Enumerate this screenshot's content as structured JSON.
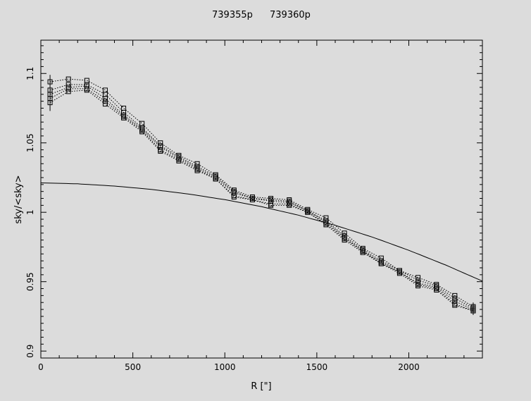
{
  "header": {
    "label_a": "739355p",
    "label_b": "739360p"
  },
  "chart_data": {
    "type": "line",
    "xlabel": "R  [\"]",
    "ylabel": "sky/<sky>",
    "xlim": [
      0,
      2400
    ],
    "ylim": [
      0.895,
      1.124
    ],
    "x_ticks": [
      0,
      500,
      1000,
      1500,
      2000
    ],
    "y_ticks": [
      0.9,
      0.95,
      1,
      1.05,
      1.1
    ],
    "y_tick_labels": [
      "0.9",
      "0.95",
      "1",
      "1.05",
      "1.1"
    ],
    "grid": false,
    "x": [
      50,
      150,
      250,
      350,
      450,
      550,
      650,
      750,
      850,
      950,
      1050,
      1150,
      1250,
      1350,
      1450,
      1550,
      1650,
      1750,
      1850,
      1950,
      2050,
      2150,
      2250,
      2350
    ],
    "series": [
      {
        "style": "dotted-squares",
        "values": [
          1.094,
          1.096,
          1.095,
          1.088,
          1.075,
          1.064,
          1.05,
          1.041,
          1.035,
          1.027,
          1.016,
          1.011,
          1.01,
          1.009,
          1.002,
          0.996,
          0.985,
          0.974,
          0.967,
          0.958,
          0.953,
          0.948,
          0.94,
          0.932
        ]
      },
      {
        "style": "dotted-squares",
        "values": [
          1.088,
          1.092,
          1.092,
          1.085,
          1.072,
          1.061,
          1.048,
          1.04,
          1.033,
          1.026,
          1.015,
          1.01,
          1.009,
          1.008,
          1.001,
          0.994,
          0.983,
          0.973,
          0.965,
          0.958,
          0.951,
          0.947,
          0.938,
          0.931
        ]
      },
      {
        "style": "dotted-squares",
        "values": [
          1.085,
          1.09,
          1.091,
          1.082,
          1.07,
          1.06,
          1.047,
          1.039,
          1.032,
          1.025,
          1.014,
          1.01,
          1.008,
          1.007,
          1.001,
          0.993,
          0.982,
          0.972,
          0.964,
          0.957,
          0.949,
          0.946,
          0.936,
          0.93
        ]
      },
      {
        "style": "dotted-squares",
        "values": [
          1.082,
          1.089,
          1.089,
          1.08,
          1.069,
          1.059,
          1.045,
          1.038,
          1.031,
          1.024,
          1.012,
          1.009,
          1.006,
          1.006,
          1.0,
          0.992,
          0.981,
          0.972,
          0.963,
          0.957,
          0.948,
          0.945,
          0.934,
          0.929
        ]
      },
      {
        "style": "dotted-squares",
        "values": [
          1.079,
          1.087,
          1.088,
          1.078,
          1.068,
          1.058,
          1.044,
          1.037,
          1.03,
          1.024,
          1.011,
          1.009,
          1.005,
          1.005,
          1.0,
          0.991,
          0.98,
          0.971,
          0.963,
          0.956,
          0.947,
          0.944,
          0.933,
          0.929
        ]
      }
    ],
    "model_curve": {
      "style": "solid",
      "x": [
        0,
        200,
        400,
        600,
        800,
        1000,
        1200,
        1400,
        1600,
        1800,
        2000,
        2200,
        2400
      ],
      "values": [
        1.0212,
        1.0205,
        1.0189,
        1.0165,
        1.0132,
        1.0091,
        1.004,
        0.9979,
        0.9906,
        0.9822,
        0.9726,
        0.962,
        0.9504
      ]
    },
    "error_bars": [
      {
        "x": 50,
        "low": 1.073,
        "high": 1.099
      },
      {
        "x": 2350,
        "low": 0.926,
        "high": 0.935
      }
    ]
  }
}
